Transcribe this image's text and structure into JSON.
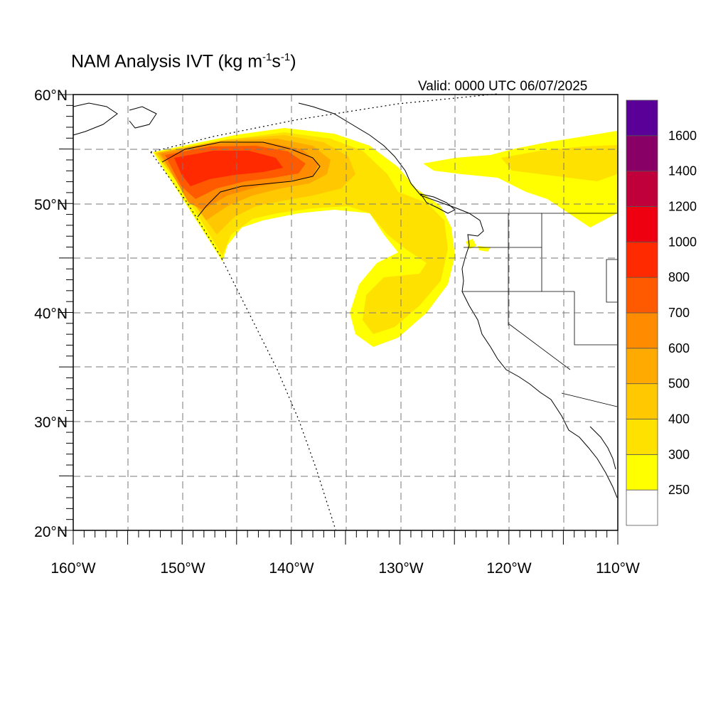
{
  "title": {
    "main": "NAM Analysis IVT (kg m",
    "exp1": "-1",
    "mid": "s",
    "exp2": "-1",
    "tail": ")"
  },
  "valid_label": "Valid: 0000 UTC 06/07/2025",
  "map": {
    "lon_range": [
      -160,
      -110
    ],
    "lat_range": [
      20,
      60
    ],
    "gridlines": "dashed",
    "lon_tick_labels": [
      "160°W",
      "150°W",
      "140°W",
      "130°W",
      "120°W",
      "110°W"
    ],
    "lat_tick_labels": [
      "20°N",
      "30°N",
      "40°N",
      "50°N",
      "60°N"
    ]
  },
  "colorbar": {
    "labels": [
      "250",
      "300",
      "400",
      "500",
      "600",
      "700",
      "800",
      "1000",
      "1200",
      "1400",
      "1600"
    ],
    "colors": [
      "#ffffff",
      "#ffff00",
      "#ffe100",
      "#ffc800",
      "#ffaa00",
      "#ff8c00",
      "#ff5a00",
      "#ff2a00",
      "#ee0010",
      "#c0003a",
      "#880066",
      "#5a0099"
    ]
  },
  "colors": {
    "coastline": "#000000",
    "grid": "#777777"
  },
  "icons": {
    "ivt_field": "filled-contour-shading",
    "domain_boundary": "dotted-line"
  }
}
